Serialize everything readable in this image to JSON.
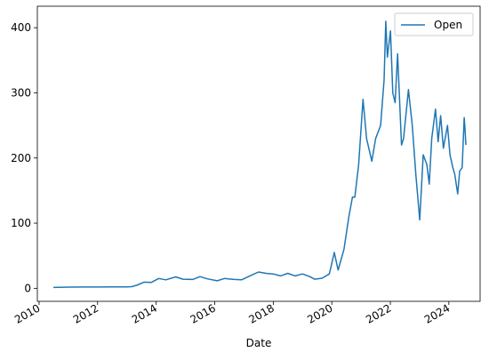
{
  "chart_data": {
    "type": "line",
    "title": "",
    "xlabel": "Date",
    "ylabel": "",
    "x_ticks": [
      "2010",
      "2012",
      "2014",
      "2016",
      "2018",
      "2020",
      "2022",
      "2024"
    ],
    "y_ticks": [
      "0",
      "100",
      "200",
      "300",
      "400"
    ],
    "xlim": [
      "2009-12-10",
      "2025-01-25"
    ],
    "ylim": [
      -20,
      433
    ],
    "grid": false,
    "legend": {
      "placement": "top-right"
    },
    "colors": {
      "series": "#1f77b4"
    },
    "series": [
      {
        "name": "Open",
        "points": [
          [
            "2010-06-29",
            1.3
          ],
          [
            "2011-01-01",
            1.8
          ],
          [
            "2011-07-01",
            1.9
          ],
          [
            "2012-01-01",
            1.9
          ],
          [
            "2012-07-01",
            2.1
          ],
          [
            "2013-01-01",
            2.3
          ],
          [
            "2013-03-01",
            2.5
          ],
          [
            "2013-05-01",
            4.5
          ],
          [
            "2013-08-01",
            9.5
          ],
          [
            "2013-11-01",
            9.0
          ],
          [
            "2014-02-01",
            15.0
          ],
          [
            "2014-05-01",
            13.0
          ],
          [
            "2014-09-01",
            17.5
          ],
          [
            "2014-12-01",
            14.0
          ],
          [
            "2015-04-01",
            13.5
          ],
          [
            "2015-07-01",
            18.0
          ],
          [
            "2015-10-01",
            14.5
          ],
          [
            "2016-02-01",
            11.5
          ],
          [
            "2016-05-01",
            15.0
          ],
          [
            "2016-09-01",
            13.5
          ],
          [
            "2016-12-01",
            13.0
          ],
          [
            "2017-04-01",
            20.0
          ],
          [
            "2017-07-01",
            25.0
          ],
          [
            "2017-10-01",
            23.0
          ],
          [
            "2018-01-01",
            22.0
          ],
          [
            "2018-04-01",
            19.0
          ],
          [
            "2018-07-01",
            23.0
          ],
          [
            "2018-10-01",
            19.0
          ],
          [
            "2019-01-01",
            22.0
          ],
          [
            "2019-04-01",
            18.0
          ],
          [
            "2019-06-01",
            14.0
          ],
          [
            "2019-09-01",
            15.5
          ],
          [
            "2019-12-01",
            22.0
          ],
          [
            "2020-02-01",
            55.0
          ],
          [
            "2020-03-20",
            28.0
          ],
          [
            "2020-06-01",
            60.0
          ],
          [
            "2020-08-01",
            110.0
          ],
          [
            "2020-09-15",
            140.0
          ],
          [
            "2020-10-15",
            140.0
          ],
          [
            "2020-12-01",
            190.0
          ],
          [
            "2021-01-25",
            290.0
          ],
          [
            "2021-03-10",
            230.0
          ],
          [
            "2021-05-15",
            195.0
          ],
          [
            "2021-07-01",
            230.0
          ],
          [
            "2021-09-01",
            250.0
          ],
          [
            "2021-10-15",
            320.0
          ],
          [
            "2021-11-05",
            410.0
          ],
          [
            "2021-11-25",
            355.0
          ],
          [
            "2022-01-03",
            395.0
          ],
          [
            "2022-02-01",
            300.0
          ],
          [
            "2022-03-01",
            285.0
          ],
          [
            "2022-04-01",
            360.0
          ],
          [
            "2022-05-20",
            220.0
          ],
          [
            "2022-06-15",
            230.0
          ],
          [
            "2022-08-15",
            305.0
          ],
          [
            "2022-10-01",
            250.0
          ],
          [
            "2022-11-15",
            175.0
          ],
          [
            "2023-01-03",
            105.0
          ],
          [
            "2023-02-15",
            205.0
          ],
          [
            "2023-04-01",
            190.0
          ],
          [
            "2023-05-01",
            160.0
          ],
          [
            "2023-06-01",
            230.0
          ],
          [
            "2023-07-18",
            275.0
          ],
          [
            "2023-08-20",
            225.0
          ],
          [
            "2023-09-20",
            265.0
          ],
          [
            "2023-10-25",
            215.0
          ],
          [
            "2023-12-15",
            250.0
          ],
          [
            "2024-01-15",
            205.0
          ],
          [
            "2024-02-20",
            185.0
          ],
          [
            "2024-03-15",
            175.0
          ],
          [
            "2024-04-20",
            145.0
          ],
          [
            "2024-05-15",
            180.0
          ],
          [
            "2024-06-15",
            185.0
          ],
          [
            "2024-07-10",
            262.0
          ],
          [
            "2024-07-20",
            245.0
          ],
          [
            "2024-08-01",
            220.0
          ]
        ]
      }
    ]
  }
}
